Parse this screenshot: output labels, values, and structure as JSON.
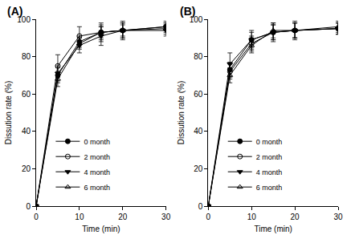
{
  "chart_data": [
    {
      "type": "line",
      "title": "(A)",
      "x_label": "Time (min)",
      "y_label": "Dissution rate (%)",
      "x": [
        0,
        5,
        10,
        15,
        20,
        30
      ],
      "xlim": [
        0,
        30
      ],
      "xticks": [
        0,
        10,
        20,
        30
      ],
      "ylim": [
        0,
        100
      ],
      "yticks": [
        0,
        20,
        40,
        60,
        80,
        100
      ],
      "grid": false,
      "legend": "lower left",
      "series": [
        {
          "name": "0 month",
          "color": "#000000",
          "marker": "circle",
          "values": [
            0,
            70,
            88,
            93,
            94,
            96
          ],
          "errors": [
            0,
            4,
            3,
            3,
            3,
            2
          ]
        },
        {
          "name": "2 month",
          "color": "#000000",
          "marker": "circle-open",
          "values": [
            0,
            75,
            91,
            93,
            94,
            96
          ],
          "errors": [
            0,
            6,
            5,
            5,
            5,
            3
          ]
        },
        {
          "name": "4 month",
          "color": "#000000",
          "marker": "triangle-down",
          "values": [
            0,
            71,
            86,
            91,
            94,
            94
          ],
          "errors": [
            0,
            4,
            4,
            5,
            4,
            3
          ]
        },
        {
          "name": "6 month",
          "color": "#000000",
          "marker": "triangle-up-open",
          "values": [
            0,
            68,
            87,
            93,
            94,
            95
          ],
          "errors": [
            0,
            4,
            3,
            4,
            4,
            3
          ]
        }
      ]
    },
    {
      "type": "line",
      "title": "(B)",
      "x_label": "Time (min)",
      "y_label": "Dissution rate (%)",
      "x": [
        0,
        5,
        10,
        15,
        20,
        30
      ],
      "xlim": [
        0,
        30
      ],
      "xticks": [
        0,
        10,
        20,
        30
      ],
      "ylim": [
        0,
        100
      ],
      "yticks": [
        0,
        20,
        40,
        60,
        80,
        100
      ],
      "grid": false,
      "legend": "lower left",
      "series": [
        {
          "name": "0 month",
          "color": "#000000",
          "marker": "circle",
          "values": [
            0,
            73,
            89,
            93,
            94,
            95
          ],
          "errors": [
            0,
            4,
            4,
            4,
            4,
            3
          ]
        },
        {
          "name": "2 month",
          "color": "#000000",
          "marker": "circle-open",
          "values": [
            0,
            72,
            87,
            93,
            94,
            95
          ],
          "errors": [
            0,
            4,
            4,
            4,
            4,
            3
          ]
        },
        {
          "name": "4 month",
          "color": "#000000",
          "marker": "triangle-down",
          "values": [
            0,
            76,
            89,
            93,
            94,
            95
          ],
          "errors": [
            0,
            6,
            5,
            5,
            5,
            3
          ]
        },
        {
          "name": "6 month",
          "color": "#000000",
          "marker": "triangle-up-open",
          "values": [
            0,
            70,
            86,
            94,
            94,
            96
          ],
          "errors": [
            0,
            4,
            4,
            4,
            4,
            3
          ]
        }
      ]
    }
  ]
}
